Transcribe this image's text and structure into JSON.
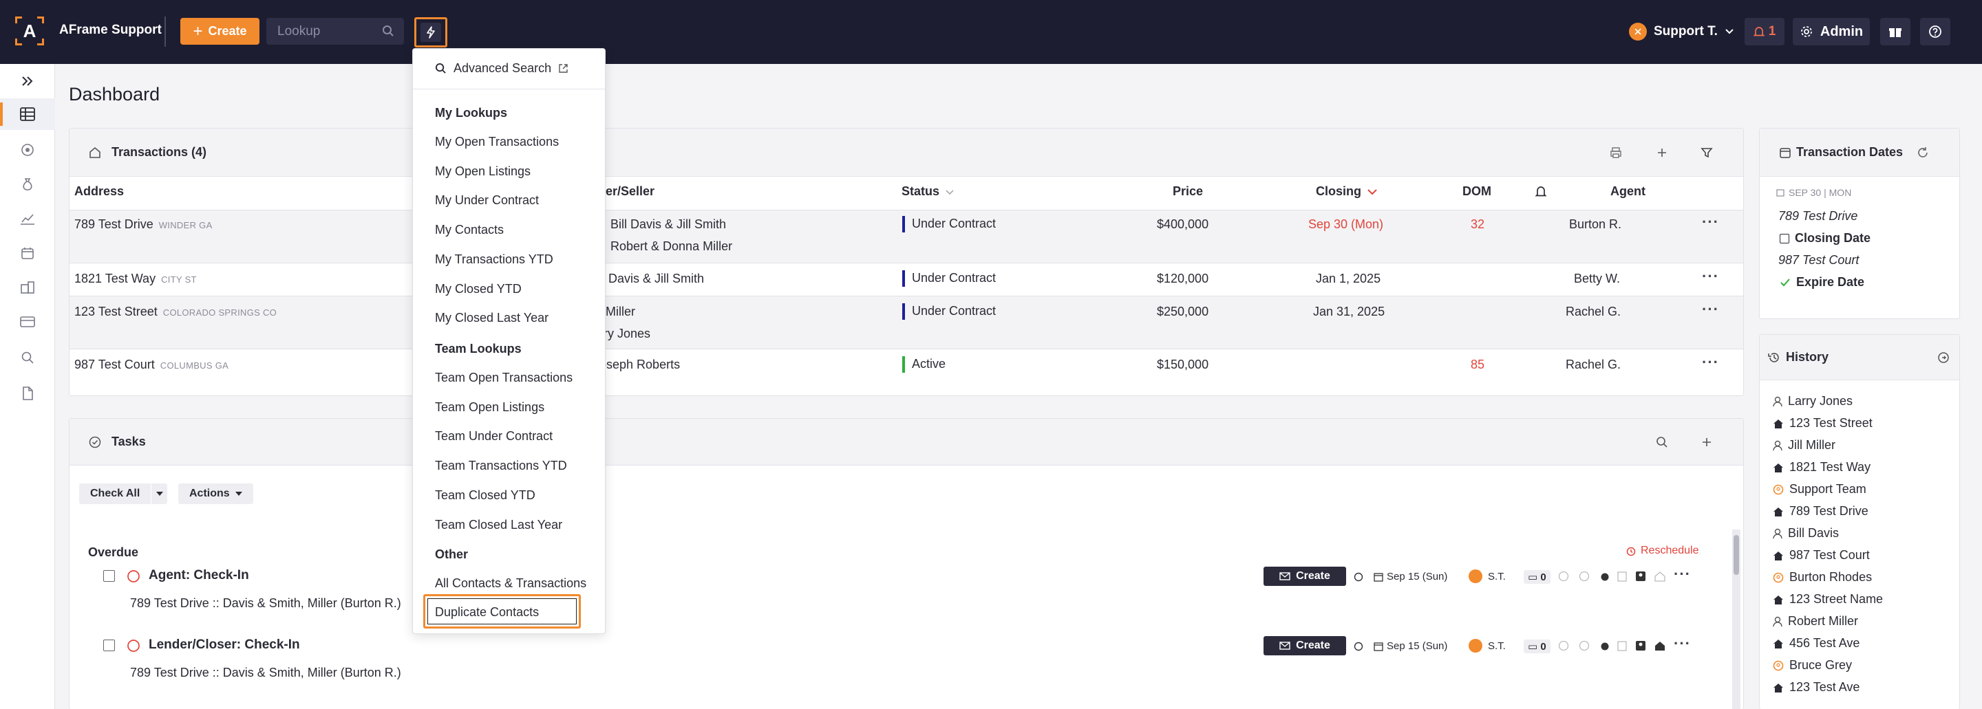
{
  "topbar": {
    "logo_letter": "A",
    "app_name": "AFrame Support",
    "create_label": "Create",
    "lookup_placeholder": "Lookup",
    "user_name": "Support T.",
    "notif_count": "1",
    "admin_label": "Admin"
  },
  "page": {
    "title": "Dashboard"
  },
  "transactions": {
    "title": "Transactions (4)",
    "columns": {
      "address": "Address",
      "buyer_seller": "yer/Seller",
      "status": "Status",
      "price": "Price",
      "closing": "Closing",
      "dom": "DOM",
      "agent": "Agent"
    },
    "rows": [
      {
        "address": "789 Test Drive",
        "city": "WINDER GA",
        "party1": "Bill Davis & Jill Smith",
        "party2": "Robert & Donna Miller",
        "status": "Under Contract",
        "status_color": "#1f1f9c",
        "price": "$400,000",
        "closing": "Sep 30 (Mon)",
        "dom": "32",
        "agent": "Burton R."
      },
      {
        "address": "1821 Test Way",
        "city": "CITY ST",
        "party1": "ll Davis & Jill Smith",
        "party2": "",
        "status": "Under Contract",
        "status_color": "#1f1f9c",
        "price": "$120,000",
        "closing": "Jan 1, 2025",
        "dom": "",
        "agent": "Betty W."
      },
      {
        "address": "123 Test Street",
        "city": "COLORADO SPRINGS CO",
        "party1": "l Miller",
        "party2": "rry Jones",
        "status": "Under Contract",
        "status_color": "#1f1f9c",
        "price": "$250,000",
        "closing": "Jan 31, 2025",
        "dom": "",
        "agent": "Rachel G."
      },
      {
        "address": "987 Test Court",
        "city": "COLUMBUS GA",
        "party1": "oseph Roberts",
        "party2": "",
        "status": "Active",
        "status_color": "#2fae3c",
        "price": "$150,000",
        "closing": "",
        "dom": "85",
        "agent": "Rachel G."
      }
    ]
  },
  "tasks": {
    "title": "Tasks",
    "check_all": "Check All",
    "actions": "Actions",
    "overdue_label": "Overdue",
    "reschedule": "Reschedule",
    "items": [
      {
        "title": "Agent: Check-In",
        "sub": "789 Test Drive  ::  Davis & Smith, Miller  (Burton R.)",
        "create": "Create",
        "date": "Sep 15 (Sun)",
        "assignee": "S.T.",
        "comments": "0"
      },
      {
        "title": "Lender/Closer: Check-In",
        "sub": "789 Test Drive  ::  Davis & Smith, Miller  (Burton R.)",
        "create": "Create",
        "date": "Sep 15 (Sun)",
        "assignee": "S.T.",
        "comments": "0"
      }
    ]
  },
  "transaction_dates": {
    "title": "Transaction Dates",
    "date_header": "SEP 30 | MON",
    "entries": [
      "789 Test Drive",
      "Closing Date",
      "987 Test Court",
      "Expire Date"
    ]
  },
  "history": {
    "title": "History",
    "items": [
      {
        "label": "Larry Jones",
        "icon": "person-icon"
      },
      {
        "label": "123 Test Street",
        "icon": "home-icon"
      },
      {
        "label": "Jill Miller",
        "icon": "person-icon"
      },
      {
        "label": "1821 Test Way",
        "icon": "home-icon"
      },
      {
        "label": "Support Team",
        "icon": "team-icon"
      },
      {
        "label": "789 Test Drive",
        "icon": "home-icon"
      },
      {
        "label": "Bill Davis",
        "icon": "person-icon"
      },
      {
        "label": "987 Test Court",
        "icon": "home-icon"
      },
      {
        "label": "Burton Rhodes",
        "icon": "team-icon"
      },
      {
        "label": "123 Street Name",
        "icon": "home-icon"
      },
      {
        "label": "Robert Miller",
        "icon": "person-icon"
      },
      {
        "label": "456 Test Ave",
        "icon": "home-icon"
      },
      {
        "label": "Bruce Grey",
        "icon": "team-icon"
      },
      {
        "label": "123 Test Ave",
        "icon": "home-icon"
      }
    ]
  },
  "dropdown": {
    "advanced_search": "Advanced Search",
    "my_lookups": "My Lookups",
    "my_items": [
      "My Open Transactions",
      "My Open Listings",
      "My Under Contract",
      "My Contacts",
      "My Transactions YTD",
      "My Closed YTD",
      "My Closed Last Year"
    ],
    "team_lookups": "Team Lookups",
    "team_items": [
      "Team Open Transactions",
      "Team Open Listings",
      "Team Under Contract",
      "Team Transactions YTD",
      "Team Closed YTD",
      "Team Closed Last Year"
    ],
    "other": "Other",
    "other_items": [
      "All Contacts & Transactions",
      "Duplicate Contacts"
    ]
  },
  "colors": {
    "accent": "#f28a2e",
    "topbar": "#1d1d31",
    "danger": "#e1453b"
  }
}
